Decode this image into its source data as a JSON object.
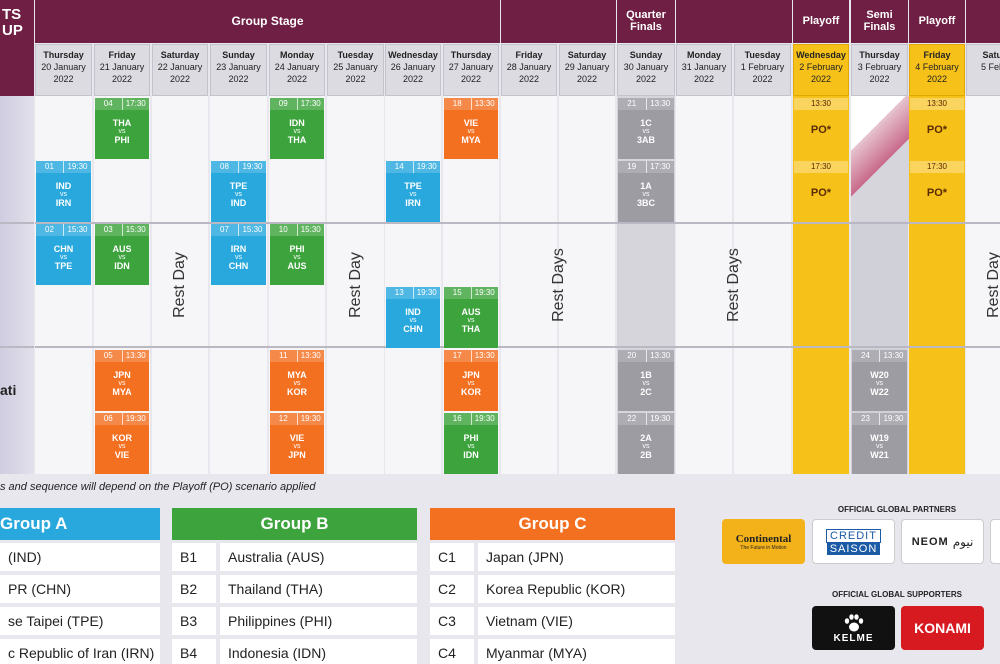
{
  "logo_fragment": "TS\nUP",
  "headers": {
    "group_stage": "Group Stage",
    "quarter_finals": "Quarter\nFinals",
    "playoff": "Playoff",
    "semi_finals": "Semi\nFinals"
  },
  "days": [
    {
      "name": "Thursday",
      "date": "20 January\n2022"
    },
    {
      "name": "Friday",
      "date": "21 January\n2022"
    },
    {
      "name": "Saturday",
      "date": "22 January\n2022"
    },
    {
      "name": "Sunday",
      "date": "23 January\n2022"
    },
    {
      "name": "Monday",
      "date": "24 January\n2022"
    },
    {
      "name": "Tuesday",
      "date": "25 January\n2022"
    },
    {
      "name": "Wednesday",
      "date": "26 January\n2022"
    },
    {
      "name": "Thursday",
      "date": "27 January\n2022"
    },
    {
      "name": "Friday",
      "date": "28 January\n2022"
    },
    {
      "name": "Saturday",
      "date": "29 January\n2022"
    },
    {
      "name": "Sunday",
      "date": "30 January\n2022"
    },
    {
      "name": "Monday",
      "date": "31 January\n2022"
    },
    {
      "name": "Tuesday",
      "date": "1 February\n2022"
    },
    {
      "name": "Wednesday",
      "date": "2 February\n2022"
    },
    {
      "name": "Thursday",
      "date": "3 February\n2022"
    },
    {
      "name": "Friday",
      "date": "4 February\n2022"
    },
    {
      "name": "Satur",
      "date": "5 Febr"
    }
  ],
  "rest_labels": {
    "rest_day": "Rest Day",
    "rest_days": "Rest Days",
    "rest_day_partial": "Rest Day"
  },
  "city_fragment": "ati",
  "matches": [
    {
      "num": "04",
      "time": "17:30",
      "home": "THA",
      "away": "PHI",
      "color": "green"
    },
    {
      "num": "01",
      "time": "19:30",
      "home": "IND",
      "away": "IRN",
      "color": "blue"
    },
    {
      "num": "02",
      "time": "15:30",
      "home": "CHN",
      "away": "TPE",
      "color": "blue"
    },
    {
      "num": "03",
      "time": "15:30",
      "home": "AUS",
      "away": "IDN",
      "color": "green"
    },
    {
      "num": "05",
      "time": "13:30",
      "home": "JPN",
      "away": "MYA",
      "color": "orange"
    },
    {
      "num": "06",
      "time": "19:30",
      "home": "KOR",
      "away": "VIE",
      "color": "orange"
    },
    {
      "num": "08",
      "time": "19:30",
      "home": "TPE",
      "away": "IND",
      "color": "blue"
    },
    {
      "num": "07",
      "time": "15:30",
      "home": "IRN",
      "away": "CHN",
      "color": "blue"
    },
    {
      "num": "09",
      "time": "17:30",
      "home": "IDN",
      "away": "THA",
      "color": "green"
    },
    {
      "num": "10",
      "time": "15:30",
      "home": "PHI",
      "away": "AUS",
      "color": "green"
    },
    {
      "num": "11",
      "time": "13:30",
      "home": "MYA",
      "away": "KOR",
      "color": "orange"
    },
    {
      "num": "12",
      "time": "19:30",
      "home": "VIE",
      "away": "JPN",
      "color": "orange"
    },
    {
      "num": "14",
      "time": "19:30",
      "home": "TPE",
      "away": "IRN",
      "color": "blue"
    },
    {
      "num": "13",
      "time": "19:30",
      "home": "IND",
      "away": "CHN",
      "color": "blue"
    },
    {
      "num": "18",
      "time": "13:30",
      "home": "VIE",
      "away": "MYA",
      "color": "orange"
    },
    {
      "num": "15",
      "time": "19:30",
      "home": "AUS",
      "away": "THA",
      "color": "green"
    },
    {
      "num": "17",
      "time": "13:30",
      "home": "JPN",
      "away": "KOR",
      "color": "orange"
    },
    {
      "num": "16",
      "time": "19:30",
      "home": "PHI",
      "away": "IDN",
      "color": "green"
    },
    {
      "num": "21",
      "time": "13:30",
      "home": "1C",
      "away": "3AB",
      "color": "gray"
    },
    {
      "num": "19",
      "time": "17:30",
      "home": "1A",
      "away": "3BC",
      "color": "gray"
    },
    {
      "num": "20",
      "time": "13:30",
      "home": "1B",
      "away": "2C",
      "color": "gray"
    },
    {
      "num": "22",
      "time": "19:30",
      "home": "2A",
      "away": "2B",
      "color": "gray"
    },
    {
      "num": "24",
      "time": "13:30",
      "home": "W20",
      "away": "W22",
      "color": "gray"
    },
    {
      "num": "23",
      "time": "19:30",
      "home": "W19",
      "away": "W21",
      "color": "gray"
    }
  ],
  "vs": "vs",
  "playoffs": [
    {
      "time": "13:30",
      "label": "PO*"
    },
    {
      "time": "17:30",
      "label": "PO*"
    },
    {
      "time": "13:30",
      "label": "PO*"
    },
    {
      "time": "17:30",
      "label": "PO*"
    }
  ],
  "footnote": "s and sequence will depend on the Playoff (PO) scenario applied",
  "groups": [
    {
      "title": "Group A",
      "color": "#29a8dd",
      "teams": [
        {
          "code": "",
          "name": "(IND)"
        },
        {
          "code": "",
          "name": "PR (CHN)"
        },
        {
          "code": "",
          "name": "se Taipei (TPE)"
        },
        {
          "code": "",
          "name": "c Republic of Iran (IRN)"
        }
      ]
    },
    {
      "title": "Group B",
      "color": "#3da43d",
      "teams": [
        {
          "code": "B1",
          "name": "Australia (AUS)"
        },
        {
          "code": "B2",
          "name": "Thailand (THA)"
        },
        {
          "code": "B3",
          "name": "Philippines (PHI)"
        },
        {
          "code": "B4",
          "name": "Indonesia (IDN)"
        }
      ]
    },
    {
      "title": "Group C",
      "color": "#f37021",
      "teams": [
        {
          "code": "C1",
          "name": "Japan (JPN)"
        },
        {
          "code": "C2",
          "name": "Korea Republic (KOR)"
        },
        {
          "code": "C3",
          "name": "Vietnam (VIE)"
        },
        {
          "code": "C4",
          "name": "Myanmar (MYA)"
        }
      ]
    }
  ],
  "partners": {
    "partners_title": "OFFICIAL GLOBAL PARTNERS",
    "supporters_title": "OFFICIAL GLOBAL SUPPORTERS",
    "continental": "Continental",
    "continental_tag": "The Future in Motion",
    "credit": "CREDIT",
    "saison": "SAISON",
    "neom": "NEOM",
    "neom_ar": "نيوم",
    "kelme": "KELME",
    "konami": "KONAMI"
  }
}
